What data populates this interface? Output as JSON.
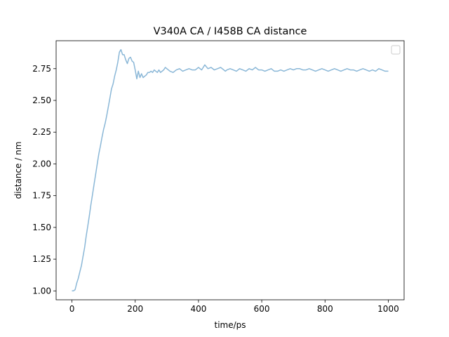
{
  "chart_data": {
    "type": "line",
    "title": "V340A CA / I458B CA distance",
    "xlabel": "time/ps",
    "ylabel": "distance / nm",
    "xlim": [
      -50,
      1050
    ],
    "ylim": [
      0.93,
      2.97
    ],
    "xticks": [
      0,
      200,
      400,
      600,
      800,
      1000
    ],
    "yticks": [
      1.0,
      1.25,
      1.5,
      1.75,
      2.0,
      2.25,
      2.5,
      2.75
    ],
    "xtick_labels": [
      "0",
      "200",
      "400",
      "600",
      "800",
      "1000"
    ],
    "ytick_labels": [
      "1.00",
      "1.25",
      "1.50",
      "1.75",
      "2.00",
      "2.25",
      "2.50",
      "2.75"
    ],
    "grid": false,
    "legend": {
      "location": "upper-right",
      "entries": []
    },
    "line_color": "#8ab7d7",
    "series": [
      {
        "x": [
          0,
          5,
          10,
          15,
          20,
          25,
          30,
          35,
          40,
          45,
          50,
          55,
          60,
          65,
          70,
          75,
          80,
          85,
          90,
          95,
          100,
          105,
          110,
          115,
          120,
          125,
          130,
          135,
          140,
          145,
          150,
          155,
          160,
          165,
          170,
          175,
          180,
          185,
          190,
          195,
          200,
          205,
          210,
          215,
          220,
          225,
          230,
          235,
          240,
          245,
          250,
          255,
          260,
          265,
          270,
          275,
          280,
          285,
          290,
          295,
          300,
          310,
          320,
          330,
          340,
          350,
          360,
          370,
          380,
          390,
          400,
          410,
          420,
          430,
          440,
          450,
          460,
          470,
          480,
          485,
          490,
          500,
          510,
          520,
          530,
          540,
          550,
          560,
          570,
          580,
          590,
          600,
          610,
          620,
          630,
          640,
          650,
          660,
          670,
          680,
          690,
          700,
          710,
          720,
          730,
          740,
          750,
          760,
          770,
          780,
          790,
          800,
          810,
          820,
          830,
          840,
          850,
          860,
          870,
          880,
          890,
          900,
          910,
          920,
          930,
          940,
          950,
          960,
          970,
          980,
          990,
          1000
        ],
        "y": [
          1.0,
          1.0,
          1.01,
          1.06,
          1.1,
          1.15,
          1.2,
          1.27,
          1.34,
          1.43,
          1.51,
          1.59,
          1.68,
          1.76,
          1.84,
          1.92,
          2.0,
          2.08,
          2.14,
          2.21,
          2.27,
          2.32,
          2.38,
          2.45,
          2.52,
          2.59,
          2.63,
          2.69,
          2.74,
          2.8,
          2.88,
          2.9,
          2.86,
          2.86,
          2.82,
          2.79,
          2.83,
          2.84,
          2.81,
          2.8,
          2.74,
          2.67,
          2.73,
          2.68,
          2.71,
          2.68,
          2.69,
          2.7,
          2.72,
          2.72,
          2.73,
          2.72,
          2.74,
          2.73,
          2.72,
          2.74,
          2.72,
          2.73,
          2.74,
          2.76,
          2.75,
          2.73,
          2.72,
          2.74,
          2.75,
          2.73,
          2.74,
          2.75,
          2.74,
          2.74,
          2.76,
          2.74,
          2.78,
          2.75,
          2.76,
          2.74,
          2.75,
          2.76,
          2.74,
          2.73,
          2.74,
          2.75,
          2.74,
          2.73,
          2.75,
          2.74,
          2.73,
          2.75,
          2.74,
          2.76,
          2.74,
          2.74,
          2.73,
          2.74,
          2.75,
          2.73,
          2.73,
          2.74,
          2.73,
          2.74,
          2.75,
          2.74,
          2.75,
          2.75,
          2.74,
          2.74,
          2.75,
          2.74,
          2.73,
          2.74,
          2.75,
          2.74,
          2.73,
          2.74,
          2.75,
          2.74,
          2.73,
          2.74,
          2.75,
          2.74,
          2.74,
          2.73,
          2.74,
          2.75,
          2.74,
          2.73,
          2.74,
          2.73,
          2.75,
          2.74,
          2.73,
          2.73
        ]
      }
    ]
  }
}
